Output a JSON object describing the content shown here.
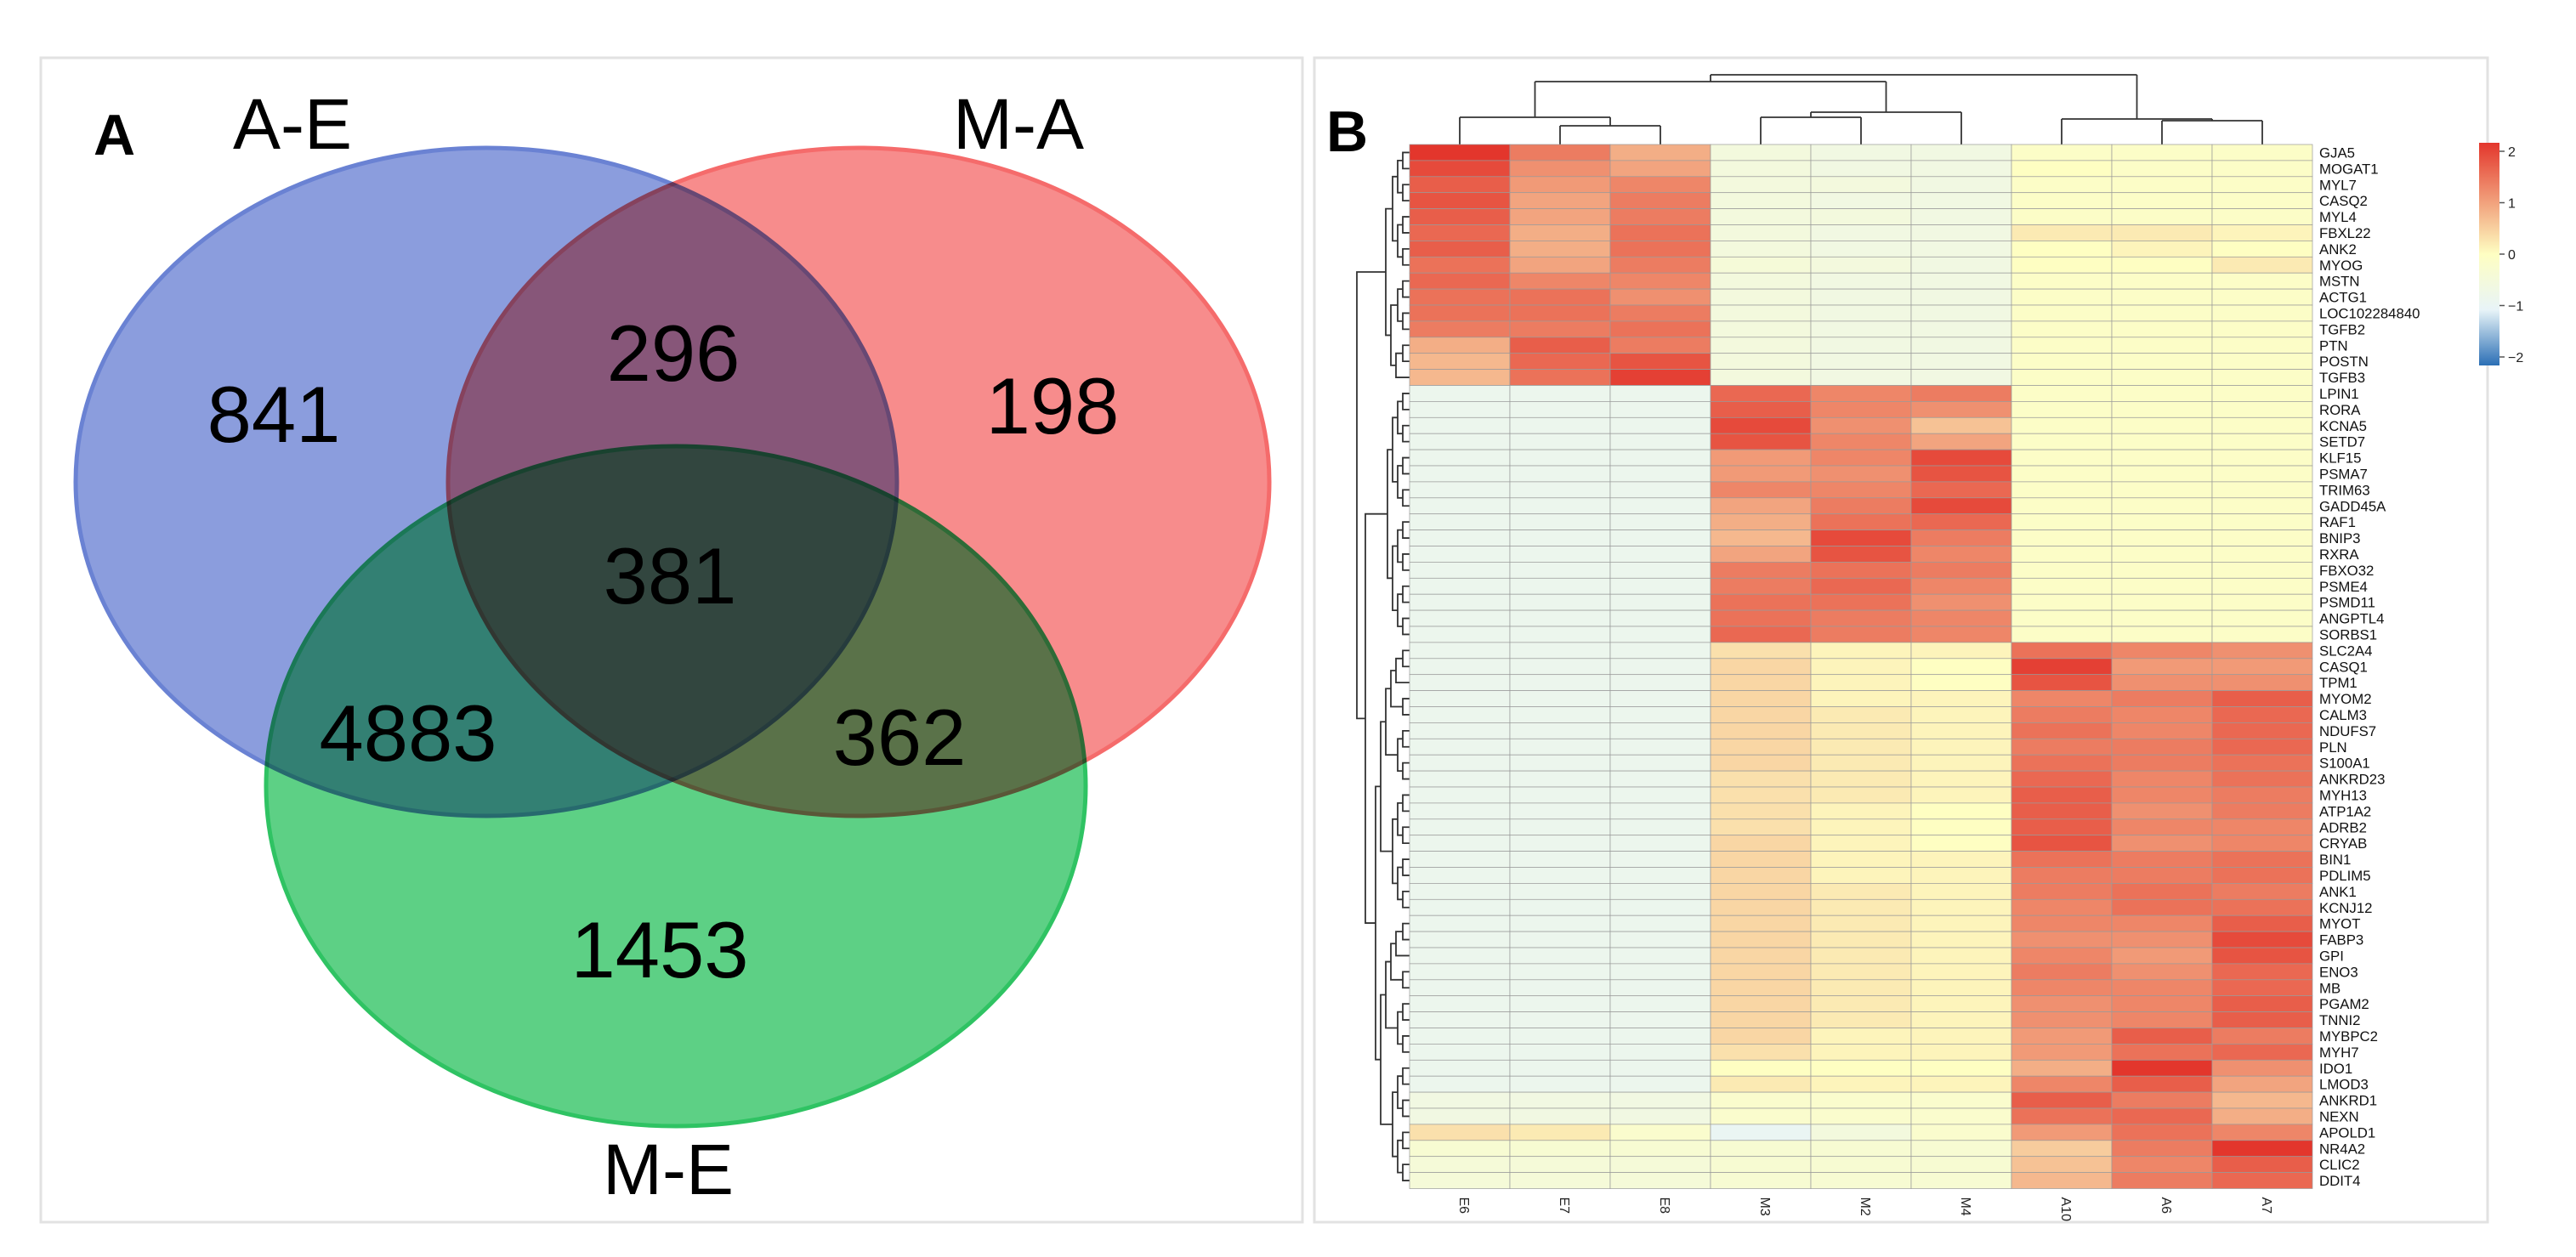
{
  "chart_data": [
    {
      "type": "venn",
      "panel": "A",
      "sets": [
        {
          "name": "A-E",
          "color": "#6a82d3"
        },
        {
          "name": "M-A",
          "color": "#f56b6b"
        },
        {
          "name": "M-E",
          "color": "#2fc363"
        }
      ],
      "regions": [
        {
          "sets": [
            "A-E"
          ],
          "value": 841
        },
        {
          "sets": [
            "M-A"
          ],
          "value": 198
        },
        {
          "sets": [
            "M-E"
          ],
          "value": 1453
        },
        {
          "sets": [
            "A-E",
            "M-A"
          ],
          "value": 296
        },
        {
          "sets": [
            "A-E",
            "M-E"
          ],
          "value": 4883
        },
        {
          "sets": [
            "M-A",
            "M-E"
          ],
          "value": 362
        },
        {
          "sets": [
            "A-E",
            "M-A",
            "M-E"
          ],
          "value": 381
        }
      ]
    },
    {
      "type": "heatmap",
      "panel": "B",
      "columns": [
        "E6",
        "E7",
        "E8",
        "M3",
        "M2",
        "M4",
        "A10",
        "A6",
        "A7"
      ],
      "rows": [
        "GJA5",
        "MOGAT1",
        "MYL7",
        "CASQ2",
        "MYL4",
        "FBXL22",
        "ANK2",
        "MYOG",
        "MSTN",
        "ACTG1",
        "LOC102284840",
        "TGFB2",
        "PTN",
        "POSTN",
        "TGFB3",
        "LPIN1",
        "RORA",
        "KCNA5",
        "SETD7",
        "KLF15",
        "PSMA7",
        "TRIM63",
        "GADD45A",
        "RAF1",
        "BNIP3",
        "RXRA",
        "FBXO32",
        "PSME4",
        "PSMD11",
        "ANGPTL4",
        "SORBS1",
        "SLC2A4",
        "CASQ1",
        "TPM1",
        "MYOM2",
        "CALM3",
        "NDUFS7",
        "PLN",
        "S100A1",
        "ANKRD23",
        "MYH13",
        "ATP1A2",
        "ADRB2",
        "CRYAB",
        "BIN1",
        "PDLIM5",
        "ANK1",
        "KCNJ12",
        "MYOT",
        "FABP3",
        "GPI",
        "ENO3",
        "MB",
        "PGAM2",
        "TNNI2",
        "MYBPC2",
        "MYH7",
        "IDO1",
        "LMOD3",
        "ANKRD1",
        "NEXN",
        "APOLD1",
        "NR4A2",
        "CLIC2",
        "DDIT4"
      ],
      "values": [
        [
          2.0,
          1.3,
          0.8,
          -0.5,
          -0.6,
          -0.6,
          -0.1,
          -0.1,
          -0.1
        ],
        [
          1.8,
          1.1,
          0.9,
          -0.5,
          -0.6,
          -0.6,
          0.0,
          -0.1,
          -0.1
        ],
        [
          1.6,
          1.0,
          1.2,
          -0.5,
          -0.5,
          -0.6,
          -0.1,
          -0.1,
          -0.1
        ],
        [
          1.7,
          0.9,
          1.3,
          -0.5,
          -0.6,
          -0.6,
          -0.1,
          -0.1,
          -0.1
        ],
        [
          1.6,
          0.9,
          1.3,
          -0.5,
          -0.5,
          -0.6,
          -0.1,
          -0.1,
          -0.1
        ],
        [
          1.5,
          0.8,
          1.4,
          -0.5,
          -0.6,
          -0.6,
          0.2,
          0.2,
          0.1
        ],
        [
          1.6,
          0.8,
          1.4,
          -0.5,
          -0.6,
          -0.6,
          0.0,
          0.1,
          0.0
        ],
        [
          1.4,
          0.9,
          1.3,
          -0.4,
          -0.5,
          -0.6,
          0.0,
          0.0,
          0.2
        ],
        [
          1.5,
          1.2,
          1.2,
          -0.5,
          -0.6,
          -0.6,
          -0.1,
          -0.1,
          -0.1
        ],
        [
          1.4,
          1.4,
          1.1,
          -0.5,
          -0.6,
          -0.6,
          -0.1,
          -0.1,
          -0.1
        ],
        [
          1.4,
          1.4,
          1.3,
          -0.5,
          -0.6,
          -0.6,
          -0.1,
          -0.1,
          -0.1
        ],
        [
          1.3,
          1.3,
          1.4,
          -0.5,
          -0.6,
          -0.6,
          -0.1,
          -0.1,
          -0.1
        ],
        [
          0.8,
          1.6,
          1.3,
          -0.5,
          -0.6,
          -0.6,
          -0.1,
          -0.1,
          -0.1
        ],
        [
          0.7,
          1.5,
          1.7,
          -0.5,
          -0.6,
          -0.6,
          -0.1,
          -0.1,
          -0.1
        ],
        [
          0.7,
          1.4,
          1.9,
          -0.5,
          -0.6,
          -0.6,
          -0.1,
          -0.1,
          -0.1
        ],
        [
          -0.8,
          -0.8,
          -0.8,
          1.5,
          1.2,
          1.3,
          -0.1,
          -0.1,
          -0.1
        ],
        [
          -0.8,
          -0.8,
          -0.8,
          1.6,
          1.2,
          1.1,
          -0.1,
          -0.1,
          -0.1
        ],
        [
          -0.8,
          -0.8,
          -0.8,
          1.8,
          1.1,
          0.6,
          -0.1,
          -0.1,
          -0.1
        ],
        [
          -0.8,
          -0.8,
          -0.8,
          1.7,
          1.2,
          0.9,
          -0.1,
          -0.1,
          -0.1
        ],
        [
          -0.8,
          -0.8,
          -0.8,
          1.0,
          1.2,
          1.8,
          -0.1,
          -0.1,
          -0.1
        ],
        [
          -0.8,
          -0.8,
          -0.8,
          1.0,
          1.1,
          1.7,
          -0.1,
          -0.1,
          -0.1
        ],
        [
          -0.8,
          -0.8,
          -0.8,
          1.2,
          1.2,
          1.5,
          -0.1,
          -0.1,
          -0.1
        ],
        [
          -0.8,
          -0.8,
          -0.8,
          0.9,
          1.3,
          1.8,
          -0.1,
          -0.1,
          -0.1
        ],
        [
          -0.8,
          -0.8,
          -0.8,
          0.8,
          1.4,
          1.5,
          -0.1,
          -0.1,
          -0.1
        ],
        [
          -0.8,
          -0.8,
          -0.8,
          0.7,
          1.8,
          1.3,
          -0.1,
          -0.1,
          -0.1
        ],
        [
          -0.8,
          -0.8,
          -0.8,
          0.9,
          1.7,
          1.2,
          -0.1,
          -0.1,
          -0.1
        ],
        [
          -0.8,
          -0.8,
          -0.8,
          1.3,
          1.4,
          1.3,
          -0.1,
          -0.1,
          -0.1
        ],
        [
          -0.8,
          -0.8,
          -0.8,
          1.3,
          1.5,
          1.2,
          -0.1,
          -0.1,
          -0.1
        ],
        [
          -0.8,
          -0.8,
          -0.8,
          1.4,
          1.4,
          1.1,
          -0.1,
          -0.1,
          -0.1
        ],
        [
          -0.8,
          -0.8,
          -0.8,
          1.4,
          1.3,
          1.2,
          -0.1,
          -0.1,
          -0.1
        ],
        [
          -0.8,
          -0.8,
          -0.8,
          1.5,
          1.3,
          1.2,
          -0.1,
          -0.1,
          -0.1
        ],
        [
          -0.8,
          -0.8,
          -0.8,
          0.3,
          0.1,
          0.1,
          1.4,
          1.2,
          1.1
        ],
        [
          -0.8,
          -0.8,
          -0.8,
          0.4,
          0.1,
          0.0,
          1.9,
          1.0,
          1.0
        ],
        [
          -0.8,
          -0.8,
          -0.8,
          0.4,
          0.1,
          0.0,
          1.7,
          1.1,
          1.1
        ],
        [
          -0.8,
          -0.8,
          -0.8,
          0.4,
          0.1,
          0.1,
          1.2,
          1.3,
          1.6
        ],
        [
          -0.8,
          -0.8,
          -0.8,
          0.4,
          0.2,
          0.1,
          1.3,
          1.2,
          1.5
        ],
        [
          -0.8,
          -0.8,
          -0.8,
          0.4,
          0.2,
          0.1,
          1.4,
          1.2,
          1.5
        ],
        [
          -0.8,
          -0.8,
          -0.8,
          0.4,
          0.2,
          0.1,
          1.3,
          1.3,
          1.5
        ],
        [
          -0.8,
          -0.8,
          -0.8,
          0.4,
          0.2,
          0.1,
          1.4,
          1.3,
          1.4
        ],
        [
          -0.8,
          -0.8,
          -0.8,
          0.3,
          0.2,
          0.1,
          1.5,
          1.2,
          1.4
        ],
        [
          -0.8,
          -0.8,
          -0.8,
          0.3,
          0.2,
          0.1,
          1.6,
          1.2,
          1.3
        ],
        [
          -0.8,
          -0.8,
          -0.8,
          0.3,
          0.1,
          0.0,
          1.6,
          1.1,
          1.3
        ],
        [
          -0.8,
          -0.8,
          -0.8,
          0.3,
          0.1,
          0.0,
          1.6,
          1.2,
          1.2
        ],
        [
          -0.8,
          -0.8,
          -0.8,
          0.4,
          0.1,
          0.0,
          1.7,
          1.1,
          1.2
        ],
        [
          -0.8,
          -0.8,
          -0.8,
          0.4,
          0.1,
          0.1,
          1.4,
          1.3,
          1.4
        ],
        [
          -0.8,
          -0.8,
          -0.8,
          0.4,
          0.1,
          0.1,
          1.3,
          1.3,
          1.4
        ],
        [
          -0.8,
          -0.8,
          -0.8,
          0.4,
          0.2,
          0.1,
          1.3,
          1.4,
          1.3
        ],
        [
          -0.8,
          -0.8,
          -0.8,
          0.4,
          0.2,
          0.1,
          1.2,
          1.4,
          1.4
        ],
        [
          -0.8,
          -0.8,
          -0.8,
          0.4,
          0.2,
          0.1,
          1.2,
          1.2,
          1.6
        ],
        [
          -0.8,
          -0.8,
          -0.8,
          0.4,
          0.2,
          0.1,
          1.1,
          1.1,
          1.8
        ],
        [
          -0.8,
          -0.8,
          -0.8,
          0.4,
          0.2,
          0.1,
          1.2,
          1.0,
          1.7
        ],
        [
          -0.8,
          -0.8,
          -0.8,
          0.4,
          0.2,
          0.1,
          1.3,
          1.1,
          1.5
        ],
        [
          -0.8,
          -0.8,
          -0.8,
          0.4,
          0.2,
          0.1,
          1.2,
          1.2,
          1.5
        ],
        [
          -0.8,
          -0.8,
          -0.8,
          0.4,
          0.2,
          0.1,
          1.1,
          1.2,
          1.6
        ],
        [
          -0.8,
          -0.8,
          -0.8,
          0.4,
          0.2,
          0.1,
          1.1,
          1.2,
          1.6
        ],
        [
          -0.8,
          -0.8,
          -0.8,
          0.4,
          0.1,
          0.1,
          1.0,
          1.6,
          1.3
        ],
        [
          -0.8,
          -0.8,
          -0.8,
          0.3,
          0.1,
          0.1,
          1.0,
          1.4,
          1.5
        ],
        [
          -0.8,
          -0.8,
          -0.8,
          0.0,
          0.0,
          0.0,
          0.8,
          2.0,
          1.1
        ],
        [
          -0.8,
          -0.8,
          -0.8,
          0.2,
          0.1,
          0.1,
          1.2,
          1.6,
          0.9
        ],
        [
          -0.6,
          -0.6,
          -0.6,
          -0.2,
          -0.2,
          -0.2,
          1.6,
          1.3,
          0.7
        ],
        [
          -0.6,
          -0.6,
          -0.6,
          -0.2,
          -0.2,
          -0.2,
          1.4,
          1.5,
          0.8
        ],
        [
          0.3,
          0.2,
          -0.2,
          -0.9,
          -0.5,
          -0.2,
          1.0,
          1.4,
          1.2
        ],
        [
          -0.3,
          -0.3,
          -0.3,
          -0.3,
          -0.3,
          -0.3,
          0.5,
          1.3,
          2.0
        ],
        [
          -0.4,
          -0.4,
          -0.4,
          -0.3,
          -0.3,
          -0.3,
          0.6,
          1.2,
          1.6
        ],
        [
          -0.4,
          -0.4,
          -0.4,
          -0.3,
          -0.3,
          -0.3,
          0.7,
          1.3,
          1.5
        ]
      ],
      "color_scale": {
        "min": -2,
        "max": 2,
        "colors": [
          "#2b6fb5",
          "#e8f4f8",
          "#fefec2",
          "#e3362c"
        ]
      },
      "legend_ticks": [
        "2",
        "1",
        "0",
        "−1",
        "−2"
      ]
    }
  ],
  "panels": {
    "a_label": "A",
    "b_label": "B"
  }
}
